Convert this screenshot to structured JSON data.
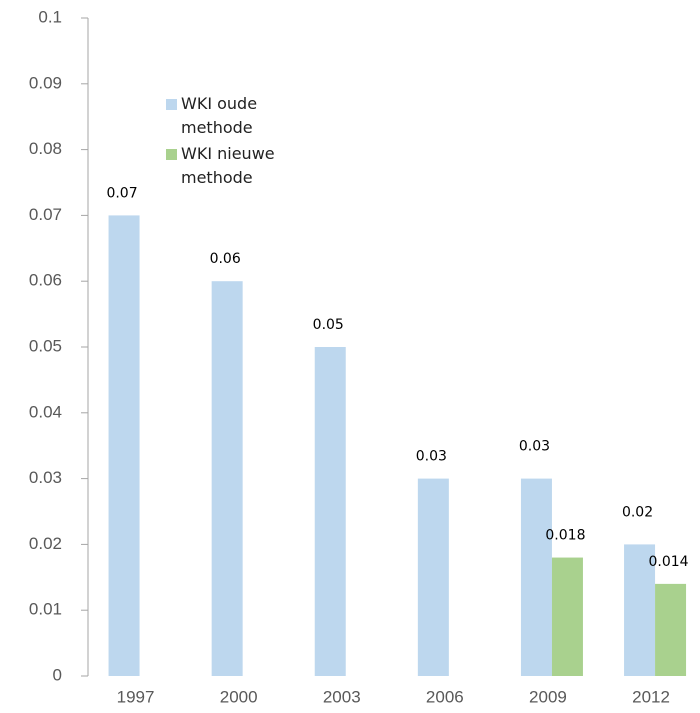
{
  "chart_data": {
    "type": "bar",
    "categories": [
      "1997",
      "2000",
      "2003",
      "2006",
      "2009",
      "2012"
    ],
    "series": [
      {
        "name": "WKI oude methode",
        "color": "#bdd7ee",
        "values": [
          0.07,
          0.06,
          0.05,
          0.03,
          0.03,
          0.02
        ]
      },
      {
        "name": "WKI nieuwe methode",
        "color": "#a9d18e",
        "values": [
          null,
          null,
          null,
          null,
          0.018,
          0.014
        ]
      }
    ],
    "ylim": [
      0,
      0.1
    ],
    "yticks": [
      0,
      0.01,
      0.02,
      0.03,
      0.04,
      0.05,
      0.06,
      0.07,
      0.08,
      0.09,
      0.1
    ],
    "legend": "top-left"
  }
}
